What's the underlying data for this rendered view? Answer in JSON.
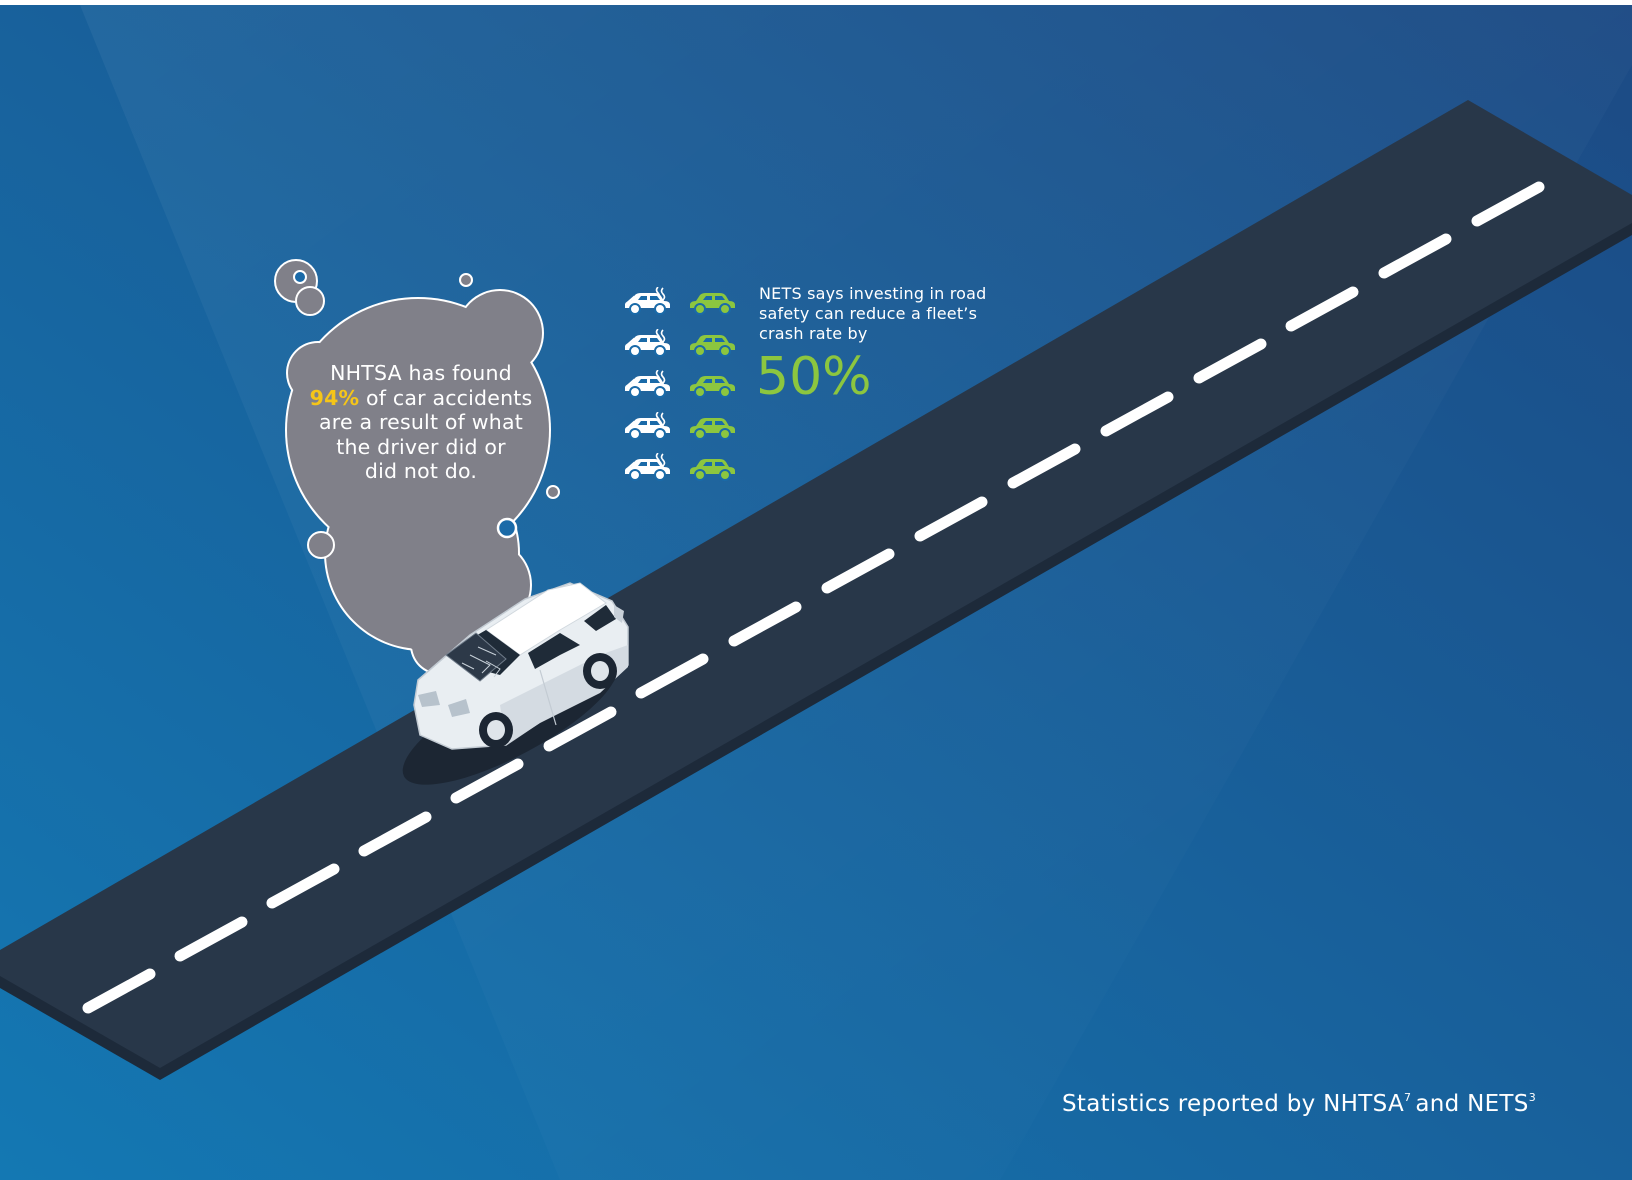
{
  "smoke_callout": {
    "line1": "NHTSA has found",
    "highlight": "94%",
    "line2_rest": " of car accidents",
    "line3": "are a result of what",
    "line4": "the driver did or",
    "line5": "did not do."
  },
  "nets_callout": {
    "line1": "NETS says investing in road",
    "line2": "safety can reduce a fleet’s",
    "line3": "crash rate by",
    "stat": "50%"
  },
  "icon_rows": [
    {
      "left": "crashed-car-icon",
      "right": "car-icon"
    },
    {
      "left": "crashed-car-icon",
      "right": "car-icon"
    },
    {
      "left": "crashed-car-icon",
      "right": "car-icon"
    },
    {
      "left": "crashed-car-icon",
      "right": "car-icon"
    },
    {
      "left": "crashed-car-icon",
      "right": "car-icon"
    }
  ],
  "footer": {
    "prefix": "Statistics reported by NHTSA",
    "ref1": "7",
    "middle": "and NETS",
    "ref2": "3"
  },
  "colors": {
    "background_dark": "#1c4d86",
    "background_light": "#1478b3",
    "road": "#283749",
    "smoke": "#808089",
    "highlight_yellow": "#f5c518",
    "accent_green": "#8cc63f"
  }
}
